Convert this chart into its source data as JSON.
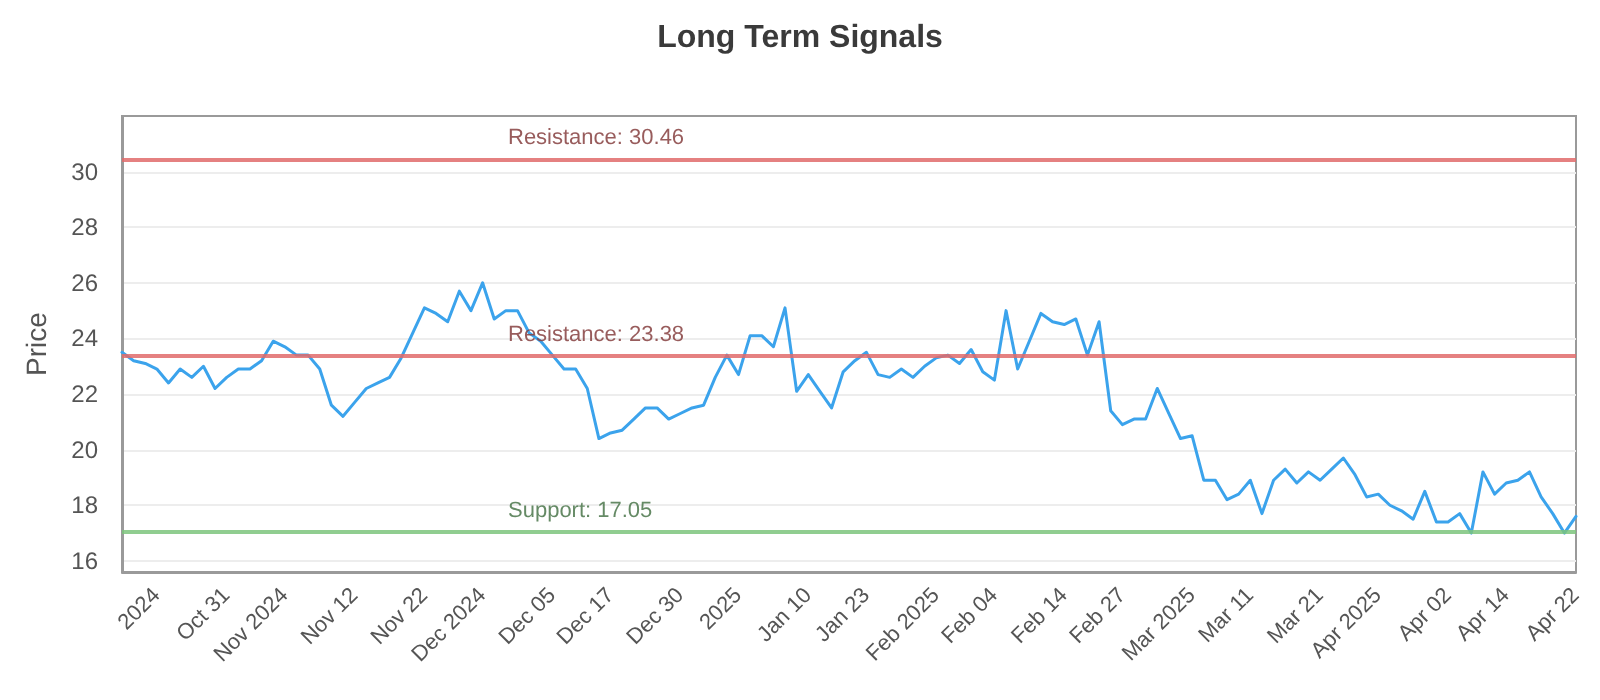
{
  "chart_data": {
    "type": "line",
    "title": "Long Term Signals",
    "ylabel": "Price",
    "categories": [
      null,
      null,
      null,
      "2024",
      null,
      null,
      null,
      null,
      null,
      "Oct 31",
      null,
      null,
      null,
      null,
      "Nov 2024",
      null,
      null,
      null,
      null,
      null,
      "Nov 12",
      null,
      null,
      null,
      null,
      null,
      "Nov 22",
      null,
      null,
      null,
      null,
      "Dec 2024",
      null,
      null,
      null,
      null,
      null,
      "Dec 05",
      null,
      null,
      null,
      null,
      "Dec 17",
      null,
      null,
      null,
      null,
      null,
      "Dec 30",
      null,
      null,
      null,
      null,
      "2025",
      null,
      null,
      null,
      null,
      null,
      "Jan 10",
      null,
      null,
      null,
      null,
      "Jan 23",
      null,
      null,
      null,
      null,
      null,
      "Feb 2025",
      null,
      null,
      null,
      null,
      "Feb 04",
      null,
      null,
      null,
      null,
      null,
      "Feb 14",
      null,
      null,
      null,
      null,
      "Feb 27",
      null,
      null,
      null,
      null,
      null,
      "Mar 2025",
      null,
      null,
      null,
      null,
      "Mar 11",
      null,
      null,
      null,
      null,
      null,
      "Mar 21",
      null,
      null,
      null,
      null,
      "Apr 2025",
      null,
      null,
      null,
      null,
      null,
      "Apr 02",
      null,
      null,
      null,
      null,
      "Apr 14",
      null,
      null,
      null,
      null,
      null,
      "Apr 22"
    ],
    "values": [
      23.5,
      23.2,
      23.1,
      22.9,
      22.4,
      22.9,
      22.6,
      23.0,
      22.2,
      22.6,
      22.9,
      22.9,
      23.2,
      23.9,
      23.7,
      23.4,
      23.4,
      22.9,
      21.6,
      21.2,
      21.7,
      22.2,
      22.4,
      22.6,
      23.3,
      24.2,
      25.1,
      24.9,
      24.6,
      25.7,
      25.0,
      26.0,
      24.7,
      25.0,
      25.0,
      24.2,
      23.9,
      23.4,
      22.9,
      22.9,
      22.2,
      20.4,
      20.6,
      20.7,
      21.1,
      21.5,
      21.5,
      21.1,
      21.3,
      21.5,
      21.6,
      22.6,
      23.4,
      22.7,
      24.1,
      24.1,
      23.7,
      25.1,
      22.1,
      22.7,
      22.1,
      21.5,
      22.8,
      23.2,
      23.5,
      22.7,
      22.6,
      22.9,
      22.6,
      23.0,
      23.3,
      23.4,
      23.1,
      23.6,
      22.8,
      22.5,
      25.0,
      22.9,
      23.9,
      24.9,
      24.6,
      24.5,
      24.7,
      23.4,
      24.6,
      21.4,
      20.9,
      21.1,
      21.1,
      22.2,
      21.3,
      20.4,
      20.5,
      18.9,
      18.9,
      18.2,
      18.4,
      18.9,
      17.7,
      18.9,
      19.3,
      18.8,
      19.2,
      18.9,
      19.3,
      19.7,
      19.1,
      18.3,
      18.4,
      18.0,
      17.8,
      17.5,
      18.5,
      17.4,
      17.4,
      17.7,
      17.0,
      19.2,
      18.4,
      18.8,
      18.9,
      19.2,
      18.3,
      17.7,
      17.0,
      17.6
    ],
    "color": "#3ba3ec",
    "ylim": [
      15.6,
      32
    ],
    "yticks": [
      16,
      18,
      20,
      22,
      24,
      26,
      28,
      30
    ],
    "ref_lines": [
      {
        "axis": "y",
        "value": 30.46,
        "label": "Resistance: 30.46",
        "color": "#e06b6b"
      },
      {
        "axis": "y",
        "value": 23.38,
        "label": "Resistance: 23.38",
        "color": "#e06b6b"
      },
      {
        "axis": "y",
        "value": 17.05,
        "label": "Support: 17.05",
        "color": "#7cc47c"
      }
    ],
    "grid": "y",
    "marker": "none"
  }
}
